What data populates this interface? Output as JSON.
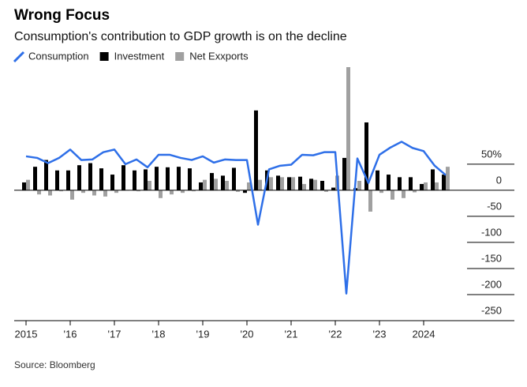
{
  "chart_data": {
    "type": "bar_line",
    "title": "Wrong Focus",
    "subtitle": "Consumption's contribution to GDP growth is on the decline",
    "source": "Source: Bloomberg",
    "categories": [
      "2015",
      null,
      null,
      null,
      "'16",
      null,
      null,
      null,
      "'17",
      null,
      null,
      null,
      "'18",
      null,
      null,
      null,
      "'19",
      null,
      null,
      null,
      "'20",
      null,
      null,
      null,
      "'21",
      null,
      null,
      null,
      "'22",
      null,
      null,
      null,
      "'23",
      null,
      null,
      null,
      "2024",
      null,
      null
    ],
    "series": [
      {
        "name": "Consumption",
        "kind": "line",
        "color": "#2e6fe8",
        "values": [
          65,
          62,
          52,
          62,
          78,
          58,
          59,
          73,
          78,
          50,
          59,
          44,
          68,
          68,
          62,
          58,
          65,
          53,
          59,
          58,
          58,
          -66,
          40,
          47,
          49,
          68,
          67,
          73,
          73,
          -198,
          61,
          14,
          68,
          82,
          93,
          81,
          75,
          47,
          29
        ]
      },
      {
        "name": "Investment",
        "kind": "bar",
        "color": "#000000",
        "values": [
          15,
          45,
          58,
          38,
          38,
          48,
          52,
          42,
          30,
          48,
          38,
          40,
          45,
          44,
          45,
          42,
          15,
          33,
          28,
          43,
          -5,
          153,
          38,
          28,
          25,
          26,
          22,
          18,
          5,
          62,
          4,
          130,
          38,
          30,
          25,
          25,
          12,
          40,
          30
        ]
      },
      {
        "name": "Net Exxports",
        "kind": "bar",
        "color": "#a0a0a0",
        "values": [
          20,
          -8,
          -10,
          -2,
          -18,
          -5,
          -10,
          -12,
          -5,
          0,
          -2,
          18,
          -15,
          -8,
          -5,
          -2,
          20,
          22,
          18,
          -3,
          15,
          20,
          25,
          25,
          25,
          12,
          20,
          -3,
          28,
          236,
          18,
          -41,
          -5,
          -18,
          -15,
          -4,
          15,
          15,
          45
        ]
      }
    ],
    "ylim": [
      -250,
      236
    ],
    "yticks": [
      {
        "value": 50,
        "label": "50%"
      },
      0,
      -50,
      -100,
      -150,
      -200,
      -250
    ],
    "grid": true
  }
}
